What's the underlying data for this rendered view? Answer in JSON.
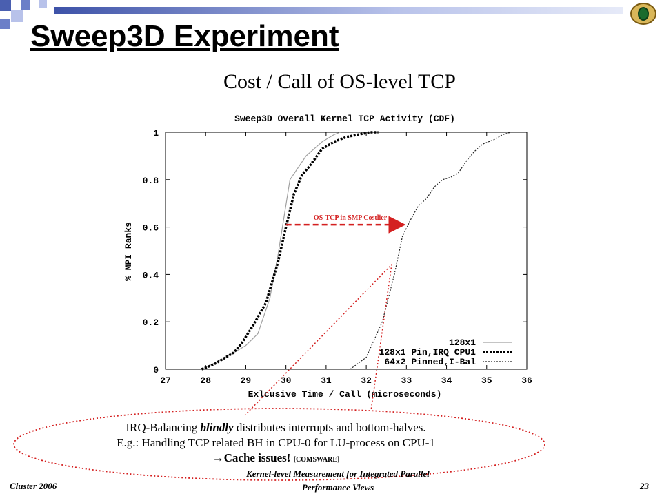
{
  "slide": {
    "title": "Sweep3D Experiment",
    "subtitle": "Cost / Call of OS-level TCP",
    "note": {
      "line1_prefix": "IRQ-Balancing ",
      "line1_emph": "blindly",
      "line1_suffix": " distributes interrupts and bottom-halves.",
      "line2": "E.g.: Handling TCP related BH in CPU-0 for LU-process on CPU-1",
      "line3_arrow": "→",
      "line3_main": "Cache issues!",
      "line3_ref": "[COMSWARE]"
    },
    "footer": {
      "left": "Cluster 2006",
      "center_line1": "Kernel-level Measurement for Integrated Parallel",
      "center_line2": "Performance Views",
      "page": "23"
    }
  },
  "chart_data": {
    "type": "line",
    "title": "Sweep3D Overall Kernel TCP Activity (CDF)",
    "xlabel": "Exlcusive Time / Call (microseconds)",
    "ylabel": "% MPI Ranks",
    "xlim": [
      27,
      36
    ],
    "ylim": [
      0,
      1
    ],
    "xticks": [
      "27",
      "28",
      "29",
      "30",
      "31",
      "32",
      "33",
      "34",
      "35",
      "36"
    ],
    "yticks": [
      "0",
      "0.2",
      "0.4",
      "0.6",
      "0.8",
      "1"
    ],
    "legend_position": "bottom-right",
    "annotation": {
      "text": "OS-TCP in SMP Costlier",
      "color": "#d42020",
      "from": [
        30.0,
        0.61
      ],
      "to": [
        32.9,
        0.61
      ]
    },
    "series": [
      {
        "name": "128x1",
        "style": "solid-gray",
        "color": "#a0a0a0",
        "x": [
          27.9,
          28.4,
          28.7,
          29.0,
          29.3,
          29.6,
          29.8,
          30.1,
          30.5,
          30.9,
          31.2,
          31.35
        ],
        "y": [
          0.0,
          0.04,
          0.07,
          0.1,
          0.15,
          0.3,
          0.48,
          0.8,
          0.9,
          0.96,
          0.99,
          1.0
        ]
      },
      {
        "name": "128x1 Pin,IRQ CPU1",
        "style": "thick-dotted-black",
        "color": "#000000",
        "x": [
          27.9,
          28.2,
          28.4,
          28.7,
          28.9,
          29.2,
          29.5,
          29.8,
          30.0,
          30.2,
          30.4,
          30.6,
          30.9,
          31.2,
          31.5,
          31.8,
          32.1,
          32.3
        ],
        "y": [
          0.0,
          0.02,
          0.04,
          0.07,
          0.11,
          0.19,
          0.28,
          0.45,
          0.6,
          0.74,
          0.82,
          0.86,
          0.93,
          0.96,
          0.98,
          0.99,
          1.0,
          1.0
        ]
      },
      {
        "name": "64x2 Pinned,I-Bal",
        "style": "thin-dotted-black",
        "color": "#222222",
        "x": [
          31.6,
          32.0,
          32.4,
          32.7,
          32.9,
          33.1,
          33.3,
          33.5,
          33.7,
          33.9,
          34.1,
          34.3,
          34.5,
          34.7,
          34.9,
          35.2,
          35.4,
          35.6
        ],
        "y": [
          0.0,
          0.05,
          0.2,
          0.4,
          0.56,
          0.63,
          0.69,
          0.72,
          0.77,
          0.8,
          0.81,
          0.83,
          0.88,
          0.92,
          0.95,
          0.97,
          0.99,
          1.0
        ]
      }
    ]
  }
}
